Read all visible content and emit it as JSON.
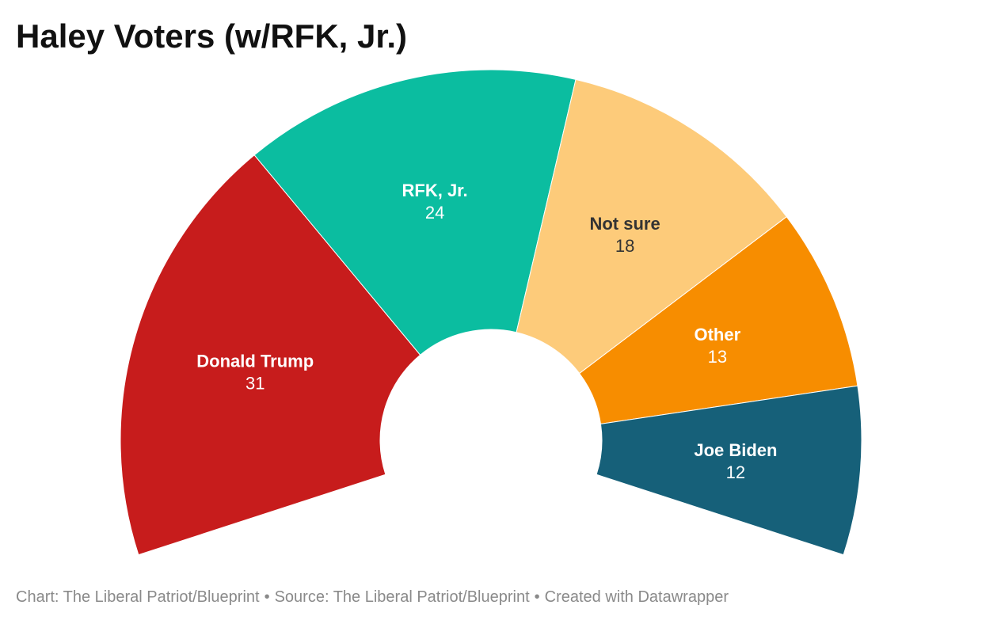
{
  "chart_data": {
    "type": "pie",
    "variant": "semicircle-donut",
    "title": "Haley Voters (w/RFK, Jr.)",
    "slices": [
      {
        "label": "Donald Trump",
        "value": 31,
        "color": "#c71c1c",
        "text_color": "#ffffff"
      },
      {
        "label": "RFK, Jr.",
        "value": 24,
        "color": "#0bbda0",
        "text_color": "#ffffff"
      },
      {
        "label": "Not sure",
        "value": 18,
        "color": "#fdcb7a",
        "text_color": "#333333"
      },
      {
        "label": "Other",
        "value": 13,
        "color": "#f78d00",
        "text_color": "#ffffff"
      },
      {
        "label": "Joe Biden",
        "value": 12,
        "color": "#166079",
        "text_color": "#ffffff"
      }
    ],
    "total": 98
  },
  "footer": {
    "chart_credit": "Chart: The Liberal Patriot/Blueprint",
    "source": "Source: The Liberal Patriot/Blueprint",
    "created_with": "Created with Datawrapper",
    "separator": "•"
  }
}
